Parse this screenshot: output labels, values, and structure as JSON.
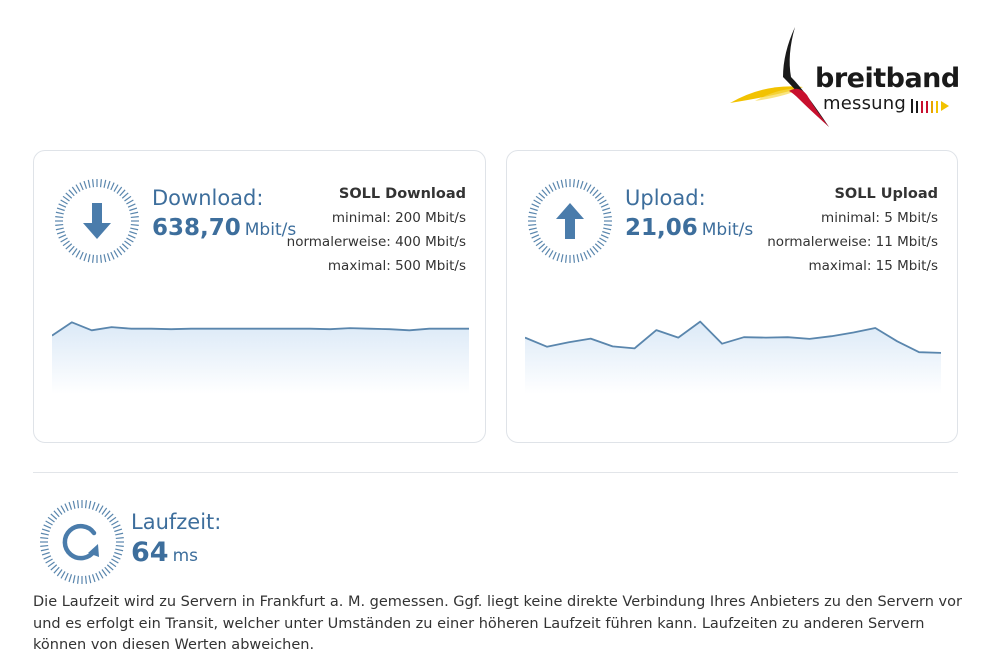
{
  "logo": {
    "top_text": "breitband",
    "bottom_text": "messung"
  },
  "download": {
    "label": "Download:",
    "value": "638,70",
    "unit": "Mbit/s",
    "icon": "arrow-down-icon",
    "soll": {
      "title": "SOLL Download",
      "minimal": "minimal: 200 Mbit/s",
      "normal": "normalerweise: 400 Mbit/s",
      "maximal": "maximal: 500 Mbit/s"
    }
  },
  "upload": {
    "label": "Upload:",
    "value": "21,06",
    "unit": "Mbit/s",
    "icon": "arrow-up-icon",
    "soll": {
      "title": "SOLL Upload",
      "minimal": "minimal: 5 Mbit/s",
      "normal": "normalerweise: 11 Mbit/s",
      "maximal": "maximal: 15 Mbit/s"
    }
  },
  "latency": {
    "label": "Laufzeit:",
    "value": "64",
    "unit": "ms",
    "icon": "refresh-icon"
  },
  "info_text": "Die Laufzeit wird zu Servern in Frankfurt a. M. gemessen. Ggf. liegt keine direkte Verbindung Ihres Anbieters zu den Servern vor und es erfolgt ein Transit, welcher unter Umständen zu einer höheren Laufzeit führen kann. Laufzeiten zu anderen Servern können von diesen Werten abweichen.",
  "colors": {
    "accent": "#3d6e9c",
    "icon_blue": "#4a7cab",
    "chart_line": "#5a86ad",
    "chart_fill_top": "#dbe9f7",
    "chart_fill_bottom": "#ffffff"
  },
  "chart_data": [
    {
      "type": "area",
      "series": [
        {
          "values": [
            630,
            655,
            640,
            646,
            643,
            643,
            642,
            643,
            643,
            643,
            643,
            643,
            643,
            643,
            642,
            644,
            643,
            642,
            640,
            643,
            643,
            643
          ]
        }
      ],
      "ylim": [
        520,
        680
      ]
    },
    {
      "type": "area",
      "series": [
        {
          "values": [
            22.6,
            19.9,
            21.2,
            22.3,
            20.0,
            19.4,
            24.8,
            22.6,
            27.3,
            20.8,
            22.7,
            22.6,
            22.7,
            22.2,
            23.0,
            24.1,
            25.4,
            21.5,
            18.3,
            18.1
          ]
        }
      ],
      "ylim": [
        6,
        31
      ]
    }
  ]
}
